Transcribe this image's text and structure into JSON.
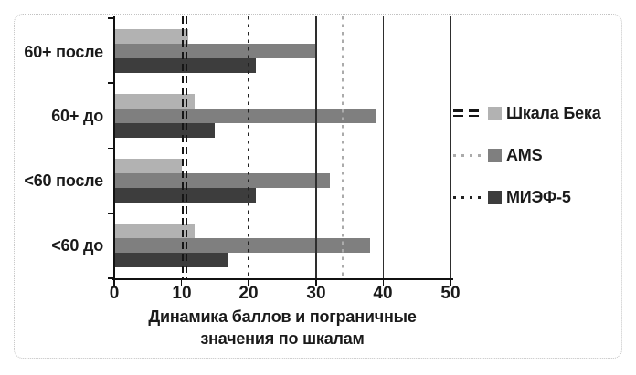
{
  "figure": {
    "background": "#ffffff",
    "frame_border_color": "#c3c3c3",
    "axis_color": "#111111",
    "text_color": "#1a1a1a"
  },
  "chart_data": {
    "type": "bar",
    "orientation": "horizontal",
    "xlabel": "Динамика баллов и пограничные значения по шкалам",
    "xlabel_lines": [
      "Динамика баллов и пограничные",
      "значения по шкалам"
    ],
    "xlim": [
      0,
      50
    ],
    "x_ticks": [
      0,
      10,
      20,
      30,
      40,
      50
    ],
    "categories": [
      "60+ после",
      "60+ до",
      "<60 после",
      "<60 до"
    ],
    "series": [
      {
        "name": "Шкала Бека",
        "color": "#b2b2b2",
        "values": [
          11,
          12,
          10,
          12
        ]
      },
      {
        "name": "AMS",
        "color": "#7f7f7f",
        "values": [
          30,
          39,
          32,
          38
        ]
      },
      {
        "name": "МИЭФ-5",
        "color": "#3d3d3d",
        "values": [
          21,
          15,
          21,
          17
        ]
      }
    ],
    "reference_lines": [
      {
        "series": "Шкала Бека",
        "value": 10.5,
        "style": "double-dash",
        "color": "#161616"
      },
      {
        "series": "AMS",
        "value": 34,
        "style": "dotted",
        "color": "#ababab"
      },
      {
        "series": "МИЭФ-5",
        "value": 20,
        "style": "dotted",
        "color": "#222222"
      }
    ],
    "solid_gridlines_at": [
      30,
      40,
      50
    ],
    "legend_position": "right",
    "legend_entries": [
      "Шкала Бека",
      "AMS",
      "МИЭФ-5"
    ]
  }
}
